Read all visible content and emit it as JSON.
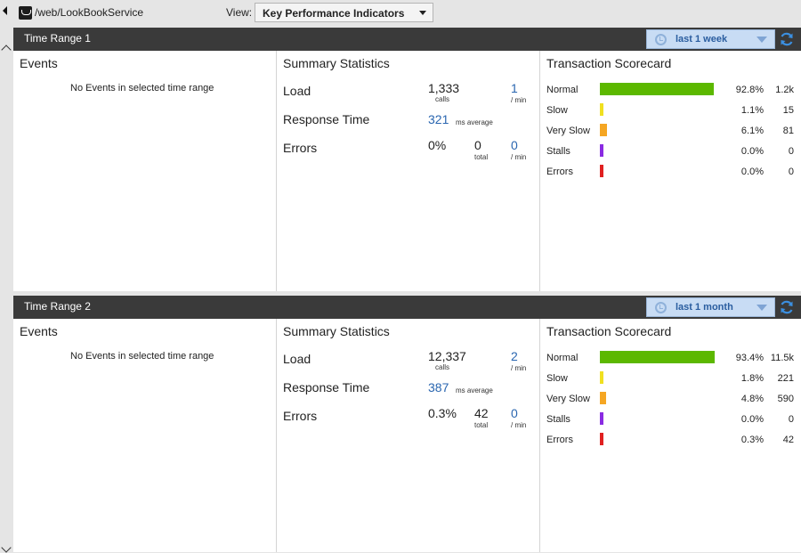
{
  "toolbar": {
    "path": "/web/LookBookService",
    "view_label": "View:",
    "view_value": "Key Performance Indicators"
  },
  "colors": {
    "normal": "#5cb800",
    "slow": "#f0e020",
    "very_slow": "#f5a623",
    "stalls": "#8a2be2",
    "errors": "#e02020",
    "header": "#3a3a3a",
    "link_blue": "#2a66b0"
  },
  "icons": [
    "collapse-arrow-icon",
    "service-icon",
    "chevron-down-icon",
    "clock-icon",
    "refresh-icon",
    "scroll-up-icon",
    "scroll-down-icon"
  ],
  "ranges": [
    {
      "title": "Time Range 1",
      "range_value": "last 1 week",
      "events_title": "Events",
      "no_events": "No Events in selected time range",
      "summary_title": "Summary Statistics",
      "load_label": "Load",
      "load_calls": "1,333",
      "calls_unit": "calls",
      "load_rate": "1",
      "per_min": "/ min",
      "rt_label": "Response Time",
      "rt_value": "321",
      "rt_unit": "ms average",
      "errors_label": "Errors",
      "errors_pct": "0%",
      "errors_total": "0",
      "total_unit": "total",
      "errors_rate": "0",
      "scorecard_title": "Transaction Scorecard",
      "scorecard": [
        {
          "label": "Normal",
          "pct": "92.8%",
          "count": "1.2k",
          "fraction": 0.928,
          "color": "#5cb800"
        },
        {
          "label": "Slow",
          "pct": "1.1%",
          "count": "15",
          "fraction": 0.011,
          "color": "#f0e020"
        },
        {
          "label": "Very Slow",
          "pct": "6.1%",
          "count": "81",
          "fraction": 0.061,
          "color": "#f5a623"
        },
        {
          "label": "Stalls",
          "pct": "0.0%",
          "count": "0",
          "fraction": 0.0,
          "color": "#8a2be2"
        },
        {
          "label": "Errors",
          "pct": "0.0%",
          "count": "0",
          "fraction": 0.0,
          "color": "#e02020"
        }
      ]
    },
    {
      "title": "Time Range 2",
      "range_value": "last 1 month",
      "events_title": "Events",
      "no_events": "No Events in selected time range",
      "summary_title": "Summary Statistics",
      "load_label": "Load",
      "load_calls": "12,337",
      "calls_unit": "calls",
      "load_rate": "2",
      "per_min": "/ min",
      "rt_label": "Response Time",
      "rt_value": "387",
      "rt_unit": "ms average",
      "errors_label": "Errors",
      "errors_pct": "0.3%",
      "errors_total": "42",
      "total_unit": "total",
      "errors_rate": "0",
      "scorecard_title": "Transaction Scorecard",
      "scorecard": [
        {
          "label": "Normal",
          "pct": "93.4%",
          "count": "11.5k",
          "fraction": 0.934,
          "color": "#5cb800"
        },
        {
          "label": "Slow",
          "pct": "1.8%",
          "count": "221",
          "fraction": 0.018,
          "color": "#f0e020"
        },
        {
          "label": "Very Slow",
          "pct": "4.8%",
          "count": "590",
          "fraction": 0.048,
          "color": "#f5a623"
        },
        {
          "label": "Stalls",
          "pct": "0.0%",
          "count": "0",
          "fraction": 0.0,
          "color": "#8a2be2"
        },
        {
          "label": "Errors",
          "pct": "0.3%",
          "count": "42",
          "fraction": 0.003,
          "color": "#e02020"
        }
      ]
    }
  ]
}
